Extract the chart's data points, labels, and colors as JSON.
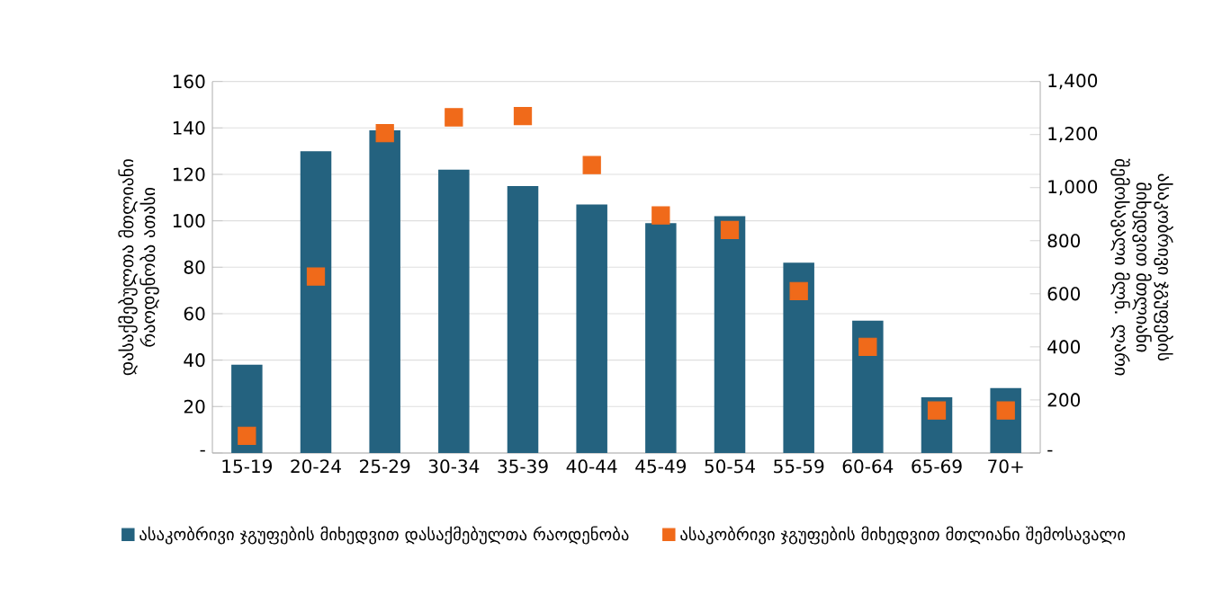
{
  "chart_data": {
    "type": "bar",
    "categories": [
      "15-19",
      "20-24",
      "25-29",
      "30-34",
      "35-39",
      "40-44",
      "45-49",
      "50-54",
      "55-59",
      "60-64",
      "65-69",
      "70+"
    ],
    "series": [
      {
        "name": "ასაკობრივი ჯგუფების მიხედვით დასაქმებულთა რაოდენობა",
        "color": "#24627f",
        "values": [
          38,
          130,
          139,
          122,
          115,
          107,
          99,
          102,
          82,
          57,
          24,
          28
        ]
      },
      {
        "name": "ასაკობრივი ჯგუფების მიხედვით მთლიანი შემოსავალი",
        "type": "scatter",
        "axis": "y2",
        "marker": "square",
        "color": "#f06a1a",
        "values": [
          65,
          665,
          1205,
          1265,
          1270,
          1085,
          895,
          840,
          610,
          400,
          160,
          160
        ]
      }
    ],
    "ylabel": "დასაქმებულთა მთლიანი რაოდენობა ათასი",
    "y2label": "ასაკობრივი ჯგუფების მიხედვით მთლიანი შემოსავალი მლნ. ლარი",
    "ylim": [
      0,
      160
    ],
    "yticks": [
      {
        "value": 0,
        "label": "-"
      },
      20,
      40,
      60,
      80,
      100,
      120,
      140,
      160
    ],
    "y2lim": [
      0,
      1400
    ],
    "y2ticks": [
      {
        "value": 0,
        "label": "-"
      },
      200,
      400,
      600,
      800,
      {
        "value": 1000,
        "label": "1,000"
      },
      {
        "value": 1200,
        "label": "1,200"
      },
      {
        "value": 1400,
        "label": "1,400"
      }
    ],
    "grid": "y",
    "legend": "bottom"
  }
}
